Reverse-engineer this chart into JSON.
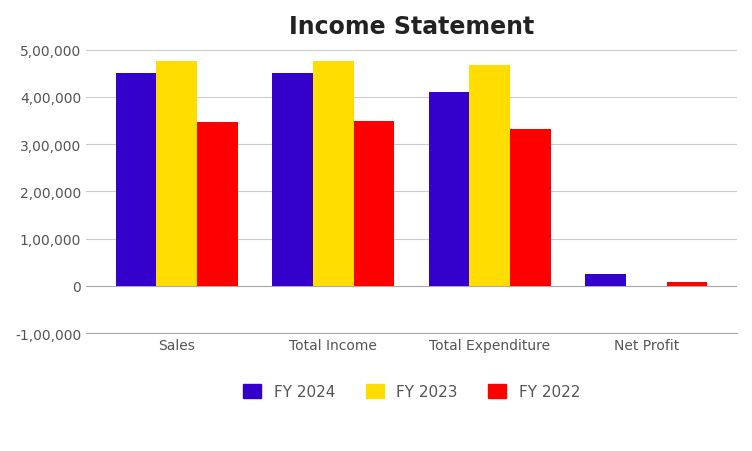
{
  "title": "Income Statement",
  "categories": [
    "Sales",
    "Total Income",
    "Total Expenditure",
    "Net Profit"
  ],
  "series": {
    "FY 2024": [
      450000,
      450000,
      410000,
      26000
    ],
    "FY 2023": [
      475000,
      477000,
      468000,
      0
    ],
    "FY 2022": [
      348000,
      350000,
      332000,
      8000
    ]
  },
  "colors": {
    "FY 2024": "#3300cc",
    "FY 2023": "#ffdd00",
    "FY 2022": "#ff0000"
  },
  "ylim": [
    -100000,
    500000
  ],
  "yticks": [
    -100000,
    0,
    100000,
    200000,
    300000,
    400000,
    500000
  ],
  "ytick_labels": [
    "-1,00,000",
    "0",
    "1,00,000",
    "2,00,000",
    "3,00,000",
    "4,00,000",
    "5,00,000"
  ],
  "title_fontsize": 17,
  "legend_fontsize": 11,
  "axis_fontsize": 10,
  "bar_width": 0.26,
  "background_color": "#ffffff",
  "grid_color": "#cccccc"
}
